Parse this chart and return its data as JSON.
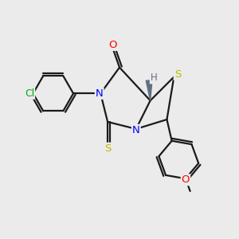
{
  "background_color": "#ebebeb",
  "bond_color": "#1a1a1a",
  "atom_colors": {
    "O": "#ff0000",
    "N": "#0000ff",
    "S": "#bbbb00",
    "Cl": "#00aa00",
    "H": "#708090",
    "C": "#1a1a1a"
  },
  "figsize": [
    3.0,
    3.0
  ],
  "dpi": 100
}
